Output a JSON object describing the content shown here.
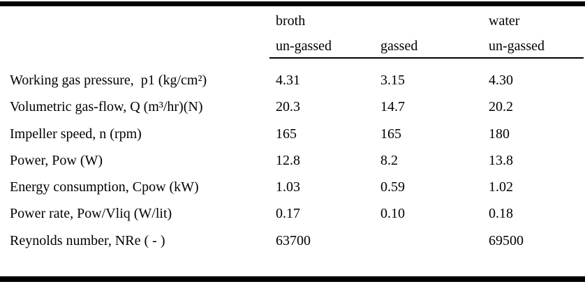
{
  "table": {
    "header": {
      "groups": [
        "broth",
        "water"
      ],
      "subcolumns": [
        "un-gassed",
        "gassed",
        "un-gassed"
      ]
    },
    "rows": [
      {
        "label": "Working gas pressure,  p1 (kg/cm²)",
        "values": [
          "4.31",
          "3.15",
          "4.30"
        ]
      },
      {
        "label": "Volumetric gas-flow, Q (m³/hr)(N)",
        "values": [
          "20.3",
          "14.7",
          "20.2"
        ]
      },
      {
        "label": "Impeller speed, n (rpm)",
        "values": [
          "165",
          "165",
          "180"
        ]
      },
      {
        "label": "Power, Pow (W)",
        "values": [
          "12.8",
          "8.2",
          "13.8"
        ]
      },
      {
        "label": "Energy consumption, Cpow (kW)",
        "values": [
          "1.03",
          "0.59",
          "1.02"
        ]
      },
      {
        "label": "Power rate, Pow/Vliq (W/lit)",
        "values": [
          "0.17",
          "0.10",
          "0.18"
        ]
      },
      {
        "label": "Reynolds number, NRe ( - )",
        "values": [
          "63700",
          "",
          "69500"
        ]
      }
    ],
    "colors": {
      "rule": "#000000",
      "background": "#ffffff",
      "text": "#000000"
    }
  }
}
